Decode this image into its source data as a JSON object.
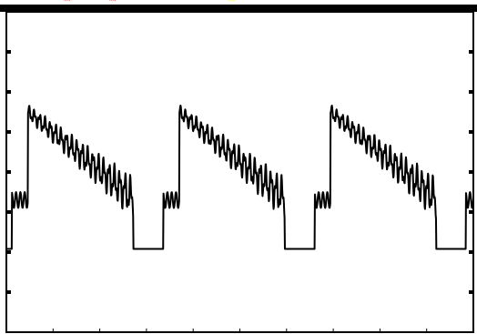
{
  "chart_data": {
    "type": "line",
    "title": "",
    "xlabel": "",
    "ylabel": "",
    "grid": false,
    "legend": "none",
    "x_tick_count": 10,
    "y_tick_count": 8,
    "xlim": [
      0,
      10
    ],
    "ylim": [
      0,
      8
    ],
    "series": [
      {
        "line_color": "#000000",
        "period": 3.24,
        "phase_offset": 0.0,
        "segments": [
          {
            "kind": "step",
            "x_start": 0.0,
            "x_end": 0.12,
            "value": 2.08
          },
          {
            "kind": "noisy_level",
            "x_start": 0.12,
            "x_end": 0.46,
            "value": 3.3,
            "ripple": 0.22
          },
          {
            "kind": "ramp",
            "x_start": 0.46,
            "x_end": 2.72,
            "value_start": 5.5,
            "value_end": 3.35,
            "ripple": 0.35
          },
          {
            "kind": "step",
            "x_start": 2.72,
            "x_end": 3.24,
            "value": 2.08
          }
        ]
      }
    ],
    "status_text": [
      {
        "text": "····",
        "color": "#d40000"
      },
      {
        "text": "····",
        "color": "#d40000"
      },
      {
        "text": "····",
        "color": "#ffff00"
      }
    ]
  }
}
